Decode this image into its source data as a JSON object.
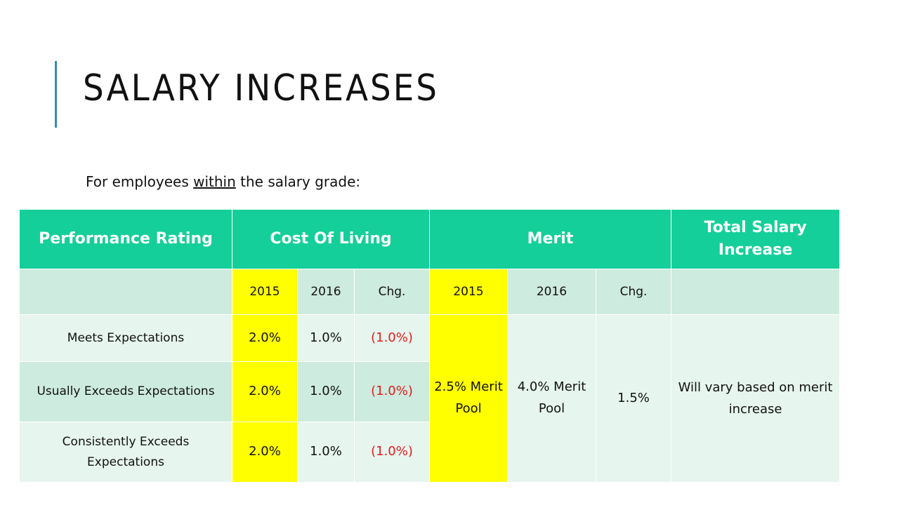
{
  "title": "SALARY INCREASES",
  "subtitle": {
    "prefix": "For employees ",
    "emphasis": "within",
    "suffix": " the salary grade:"
  },
  "table": {
    "headers": {
      "performance_rating": "Performance Rating",
      "cost_of_living": "Cost Of Living",
      "merit": "Merit",
      "total_salary_increase": "Total Salary Increase"
    },
    "subheaders": {
      "col_2015": "2015",
      "col_2016": "2016",
      "col_chg": "Chg.",
      "merit_2015": "2015",
      "merit_2016": "2016",
      "merit_chg": "Chg."
    },
    "rows": [
      {
        "rating": "Meets Expectations",
        "col_2015": "2.0%",
        "col_2016": "1.0%",
        "col_chg": "(1.0%)"
      },
      {
        "rating": "Usually Exceeds Expectations",
        "col_2015": "2.0%",
        "col_2016": "1.0%",
        "col_chg": "(1.0%)"
      },
      {
        "rating": "Consistently Exceeds Expectations",
        "col_2015": "2.0%",
        "col_2016": "1.0%",
        "col_chg": "(1.0%)"
      }
    ],
    "merit": {
      "pool_2015": "2.5% Merit Pool",
      "pool_2016": "4.0% Merit Pool",
      "chg": "1.5%"
    },
    "total": "Will vary based on merit increase"
  },
  "colors": {
    "header_green": "#14cf99",
    "row_light": "#e6f5ee",
    "row_mid": "#cdebde",
    "highlight_yellow": "#ffff00",
    "negative_red": "#e41b1b",
    "title_accent": "#2d8fb4"
  }
}
